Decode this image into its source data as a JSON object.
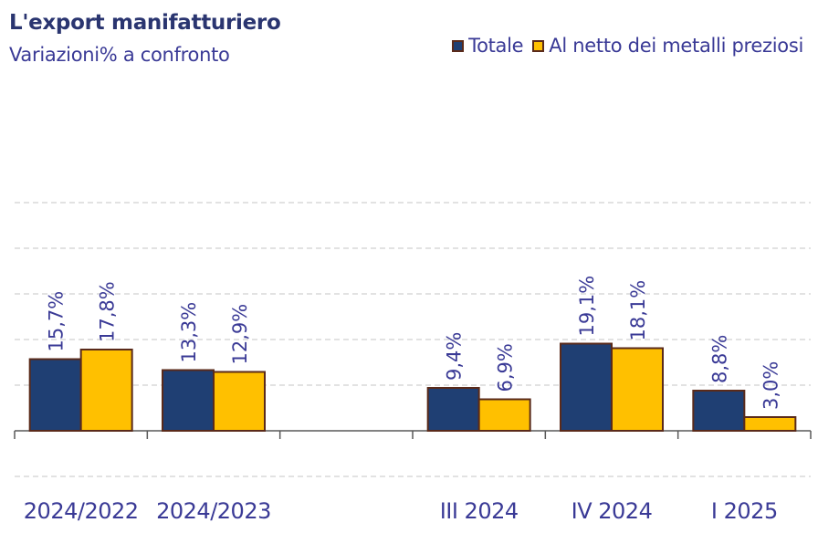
{
  "chart_data": {
    "type": "bar",
    "title": "L'export manifatturiero",
    "subtitle": "Variazioni% a confronto",
    "categories": [
      "2024/2022",
      "2024/2023",
      "",
      "III 2024",
      "IV 2024",
      "I 2025"
    ],
    "series": [
      {
        "name": "Totale",
        "color": "#1f3f73",
        "values": [
          15.7,
          13.3,
          null,
          9.4,
          19.1,
          8.8
        ],
        "labels": [
          "15,7%",
          "13,3%",
          "",
          "9,4%",
          "19,1%",
          "8,8%"
        ]
      },
      {
        "name": "Al netto dei metalli preziosi",
        "color": "#ffc000",
        "values": [
          17.8,
          12.9,
          null,
          6.9,
          18.1,
          3.0
        ],
        "labels": [
          "17,8%",
          "12,9%",
          "",
          "6,9%",
          "18,1%",
          "3,0%"
        ]
      }
    ],
    "ylim": [
      -10,
      50
    ],
    "grid": true,
    "legend_position": "top-right",
    "colors": {
      "text": "#3a3a96",
      "title": "#2a3570",
      "bar_border": "#5a2a1a",
      "grid": "#d9d9d9",
      "axis": "#595959"
    }
  }
}
